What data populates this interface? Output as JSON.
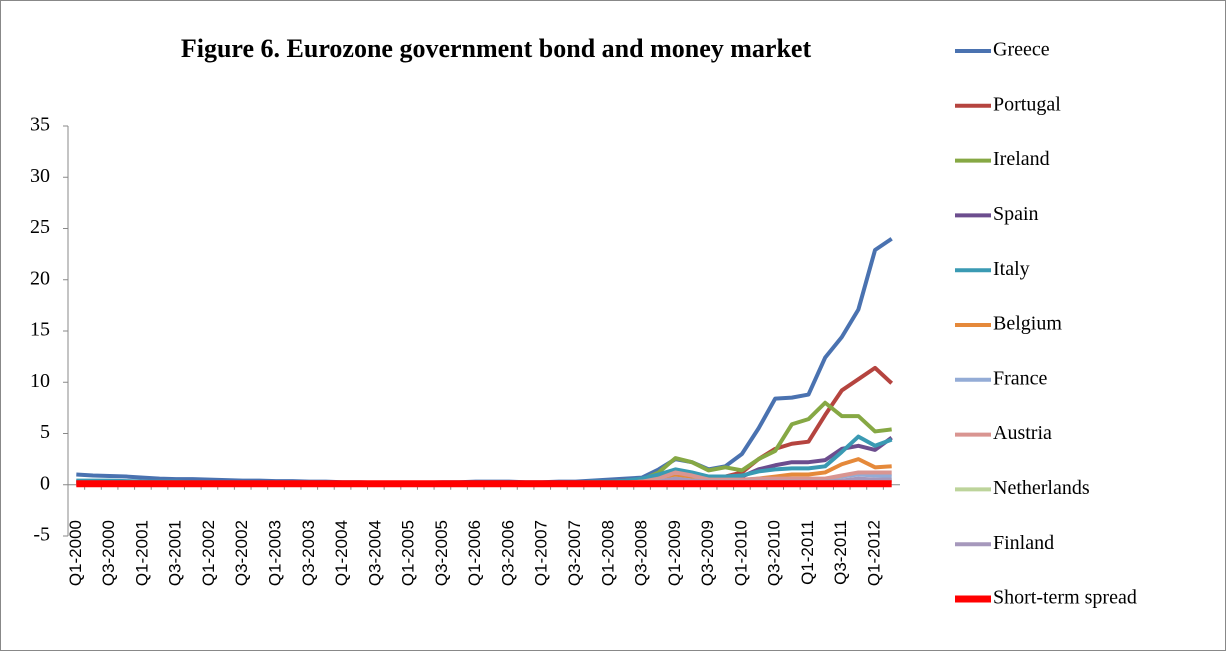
{
  "chart_data": {
    "type": "line",
    "title": "Figure 6. Eurozone government bond and money market",
    "categories": [
      "Q1-2000",
      null,
      "Q3-2000",
      null,
      "Q1-2001",
      null,
      "Q3-2001",
      null,
      "Q1-2002",
      null,
      "Q3-2002",
      null,
      "Q1-2003",
      null,
      "Q3-2003",
      null,
      "Q1-2004",
      null,
      "Q3-2004",
      null,
      "Q1-2005",
      null,
      "Q3-2005",
      null,
      "Q1-2006",
      null,
      "Q3-2006",
      null,
      "Q1-2007",
      null,
      "Q3-2007",
      null,
      "Q1-2008",
      null,
      "Q3-2008",
      null,
      "Q1-2009",
      null,
      "Q3-2009",
      null,
      "Q1-2010",
      null,
      "Q3-2010",
      null,
      "Q1-2011",
      null,
      "Q3-2011",
      null,
      "Q1-2012",
      null
    ],
    "ylim": [
      -5,
      35
    ],
    "yticks": [
      -5,
      0,
      5,
      10,
      15,
      20,
      25,
      30,
      35
    ],
    "series": [
      {
        "name": "Greece",
        "color": "#4a72b0",
        "width": 4,
        "values": [
          1.0,
          0.9,
          0.85,
          0.8,
          0.7,
          0.6,
          0.55,
          0.55,
          0.5,
          0.45,
          0.4,
          0.4,
          0.35,
          0.35,
          0.3,
          0.3,
          0.25,
          0.25,
          0.2,
          0.2,
          0.2,
          0.2,
          0.25,
          0.25,
          0.3,
          0.3,
          0.3,
          0.25,
          0.25,
          0.3,
          0.3,
          0.4,
          0.5,
          0.6,
          0.7,
          1.5,
          2.5,
          2.2,
          1.5,
          1.8,
          3.0,
          5.5,
          8.4,
          8.5,
          8.8,
          12.4,
          14.4,
          17.1,
          22.9,
          24.0
        ]
      },
      {
        "name": "Portugal",
        "color": "#b5443f",
        "width": 4,
        "values": [
          0.3,
          0.3,
          0.3,
          0.3,
          0.25,
          0.25,
          0.2,
          0.2,
          0.2,
          0.2,
          0.15,
          0.15,
          0.15,
          0.15,
          0.1,
          0.1,
          0.1,
          0.1,
          0.1,
          0.1,
          0.1,
          0.1,
          0.1,
          0.1,
          0.1,
          0.1,
          0.1,
          0.1,
          0.1,
          0.1,
          0.2,
          0.2,
          0.3,
          0.4,
          0.5,
          0.8,
          1.2,
          1.0,
          0.8,
          0.8,
          1.2,
          2.5,
          3.5,
          4.0,
          4.2,
          6.8,
          9.2,
          10.3,
          11.4,
          9.9
        ]
      },
      {
        "name": "Ireland",
        "color": "#86a844",
        "width": 4,
        "values": [
          0.1,
          0.1,
          0.1,
          0.1,
          0.1,
          0.1,
          0.1,
          0.1,
          0.1,
          0.1,
          0.1,
          0.1,
          0.1,
          0.1,
          0.1,
          0.1,
          0.1,
          0.1,
          0.1,
          0.1,
          0.1,
          0.1,
          0.1,
          0.1,
          0.1,
          0.1,
          0.1,
          0.1,
          0.1,
          0.1,
          0.1,
          0.1,
          0.2,
          0.3,
          0.5,
          1.2,
          2.6,
          2.2,
          1.4,
          1.7,
          1.4,
          2.5,
          3.3,
          5.9,
          6.4,
          8.0,
          6.7,
          6.7,
          5.2,
          5.4
        ]
      },
      {
        "name": "Spain",
        "color": "#6c4d8e",
        "width": 4,
        "values": [
          0.2,
          0.2,
          0.2,
          0.2,
          0.2,
          0.15,
          0.15,
          0.15,
          0.1,
          0.1,
          0.1,
          0.1,
          0.1,
          0.1,
          0.1,
          0.1,
          0.1,
          0.1,
          0.1,
          0.1,
          0.1,
          0.1,
          0.1,
          0.1,
          0.1,
          0.1,
          0.1,
          0.1,
          0.1,
          0.1,
          0.1,
          0.1,
          0.1,
          0.2,
          0.3,
          0.6,
          1.0,
          0.8,
          0.6,
          0.6,
          0.8,
          1.5,
          1.9,
          2.2,
          2.2,
          2.4,
          3.5,
          3.8,
          3.4,
          4.6
        ]
      },
      {
        "name": "Italy",
        "color": "#3a9ab3",
        "width": 4,
        "values": [
          0.4,
          0.4,
          0.4,
          0.35,
          0.3,
          0.3,
          0.3,
          0.25,
          0.25,
          0.2,
          0.2,
          0.2,
          0.2,
          0.2,
          0.2,
          0.2,
          0.2,
          0.2,
          0.2,
          0.2,
          0.2,
          0.2,
          0.2,
          0.2,
          0.2,
          0.2,
          0.2,
          0.2,
          0.2,
          0.2,
          0.2,
          0.3,
          0.3,
          0.4,
          0.6,
          1.0,
          1.5,
          1.2,
          0.8,
          0.8,
          0.9,
          1.3,
          1.5,
          1.6,
          1.6,
          1.8,
          3.2,
          4.7,
          3.8,
          4.4
        ]
      },
      {
        "name": "Belgium",
        "color": "#e5893a",
        "width": 4,
        "values": [
          0.2,
          0.2,
          0.2,
          0.2,
          0.2,
          0.15,
          0.15,
          0.15,
          0.1,
          0.1,
          0.1,
          0.1,
          0.1,
          0.1,
          0.1,
          0.1,
          0.1,
          0.1,
          0.1,
          0.1,
          0.1,
          0.1,
          0.1,
          0.1,
          0.1,
          0.1,
          0.1,
          0.1,
          0.1,
          0.1,
          0.1,
          0.1,
          0.1,
          0.2,
          0.3,
          0.5,
          0.9,
          0.7,
          0.5,
          0.4,
          0.4,
          0.6,
          0.8,
          1.0,
          1.0,
          1.2,
          2.0,
          2.5,
          1.7,
          1.8
        ]
      },
      {
        "name": "France",
        "color": "#94acd6",
        "width": 4,
        "values": [
          0.1,
          0.1,
          0.1,
          0.1,
          0.1,
          0.1,
          0.1,
          0.1,
          0.1,
          0.1,
          0.1,
          0.1,
          0.1,
          0.1,
          0.1,
          0.1,
          0.1,
          0.1,
          0.1,
          0.1,
          0.1,
          0.1,
          0.1,
          0.1,
          0.1,
          0.1,
          0.1,
          0.1,
          0.1,
          0.1,
          0.1,
          0.1,
          0.1,
          0.1,
          0.2,
          0.3,
          0.5,
          0.4,
          0.3,
          0.3,
          0.3,
          0.4,
          0.4,
          0.4,
          0.4,
          0.5,
          0.8,
          1.0,
          0.9,
          0.8
        ]
      },
      {
        "name": "Austria",
        "color": "#d99591",
        "width": 4,
        "values": [
          0.1,
          0.1,
          0.1,
          0.1,
          0.1,
          0.1,
          0.1,
          0.1,
          0.1,
          0.1,
          0.1,
          0.1,
          0.1,
          0.1,
          0.1,
          0.1,
          0.1,
          0.1,
          0.1,
          0.1,
          0.1,
          0.1,
          0.1,
          0.1,
          0.1,
          0.1,
          0.1,
          0.1,
          0.1,
          0.1,
          0.1,
          0.1,
          0.1,
          0.2,
          0.3,
          0.6,
          1.2,
          0.9,
          0.5,
          0.5,
          0.5,
          0.6,
          0.6,
          0.6,
          0.6,
          0.6,
          0.9,
          1.2,
          1.2,
          1.2
        ]
      },
      {
        "name": "Netherlands",
        "color": "#bdd49b",
        "width": 4,
        "values": [
          0.1,
          0.1,
          0.1,
          0.1,
          0.1,
          0.1,
          0.1,
          0.1,
          0.1,
          0.1,
          0.1,
          0.1,
          0.1,
          0.1,
          0.1,
          0.1,
          0.1,
          0.1,
          0.1,
          0.1,
          0.1,
          0.1,
          0.1,
          0.1,
          0.1,
          0.1,
          0.1,
          0.1,
          0.1,
          0.1,
          0.1,
          0.1,
          0.1,
          0.1,
          0.2,
          0.3,
          0.6,
          0.4,
          0.3,
          0.3,
          0.3,
          0.3,
          0.3,
          0.3,
          0.3,
          0.3,
          0.4,
          0.5,
          0.4,
          0.4
        ]
      },
      {
        "name": "Finland",
        "color": "#a698bc",
        "width": 4,
        "values": [
          0.1,
          0.1,
          0.1,
          0.1,
          0.1,
          0.1,
          0.1,
          0.1,
          0.1,
          0.1,
          0.1,
          0.1,
          0.1,
          0.1,
          0.1,
          0.1,
          0.1,
          0.1,
          0.1,
          0.1,
          0.1,
          0.1,
          0.1,
          0.1,
          0.1,
          0.1,
          0.1,
          0.1,
          0.1,
          0.1,
          0.1,
          0.1,
          0.1,
          0.1,
          0.2,
          0.3,
          0.6,
          0.4,
          0.3,
          0.3,
          0.3,
          0.3,
          0.3,
          0.3,
          0.3,
          0.3,
          0.4,
          0.6,
          0.5,
          0.5
        ]
      },
      {
        "name": "Short-term spread",
        "color": "#ff0000",
        "width": 7,
        "values": [
          0.1,
          0.1,
          0.1,
          0.1,
          0.1,
          0.1,
          0.1,
          0.1,
          0.1,
          0.1,
          0.1,
          0.1,
          0.1,
          0.1,
          0.1,
          0.1,
          0.1,
          0.1,
          0.1,
          0.1,
          0.1,
          0.1,
          0.1,
          0.1,
          0.1,
          0.1,
          0.1,
          0.1,
          0.1,
          0.1,
          0.1,
          0.1,
          0.1,
          0.1,
          0.1,
          0.1,
          0.1,
          0.1,
          0.1,
          0.1,
          0.1,
          0.1,
          0.1,
          0.1,
          0.1,
          0.1,
          0.1,
          0.1,
          0.1,
          0.1
        ]
      }
    ]
  }
}
